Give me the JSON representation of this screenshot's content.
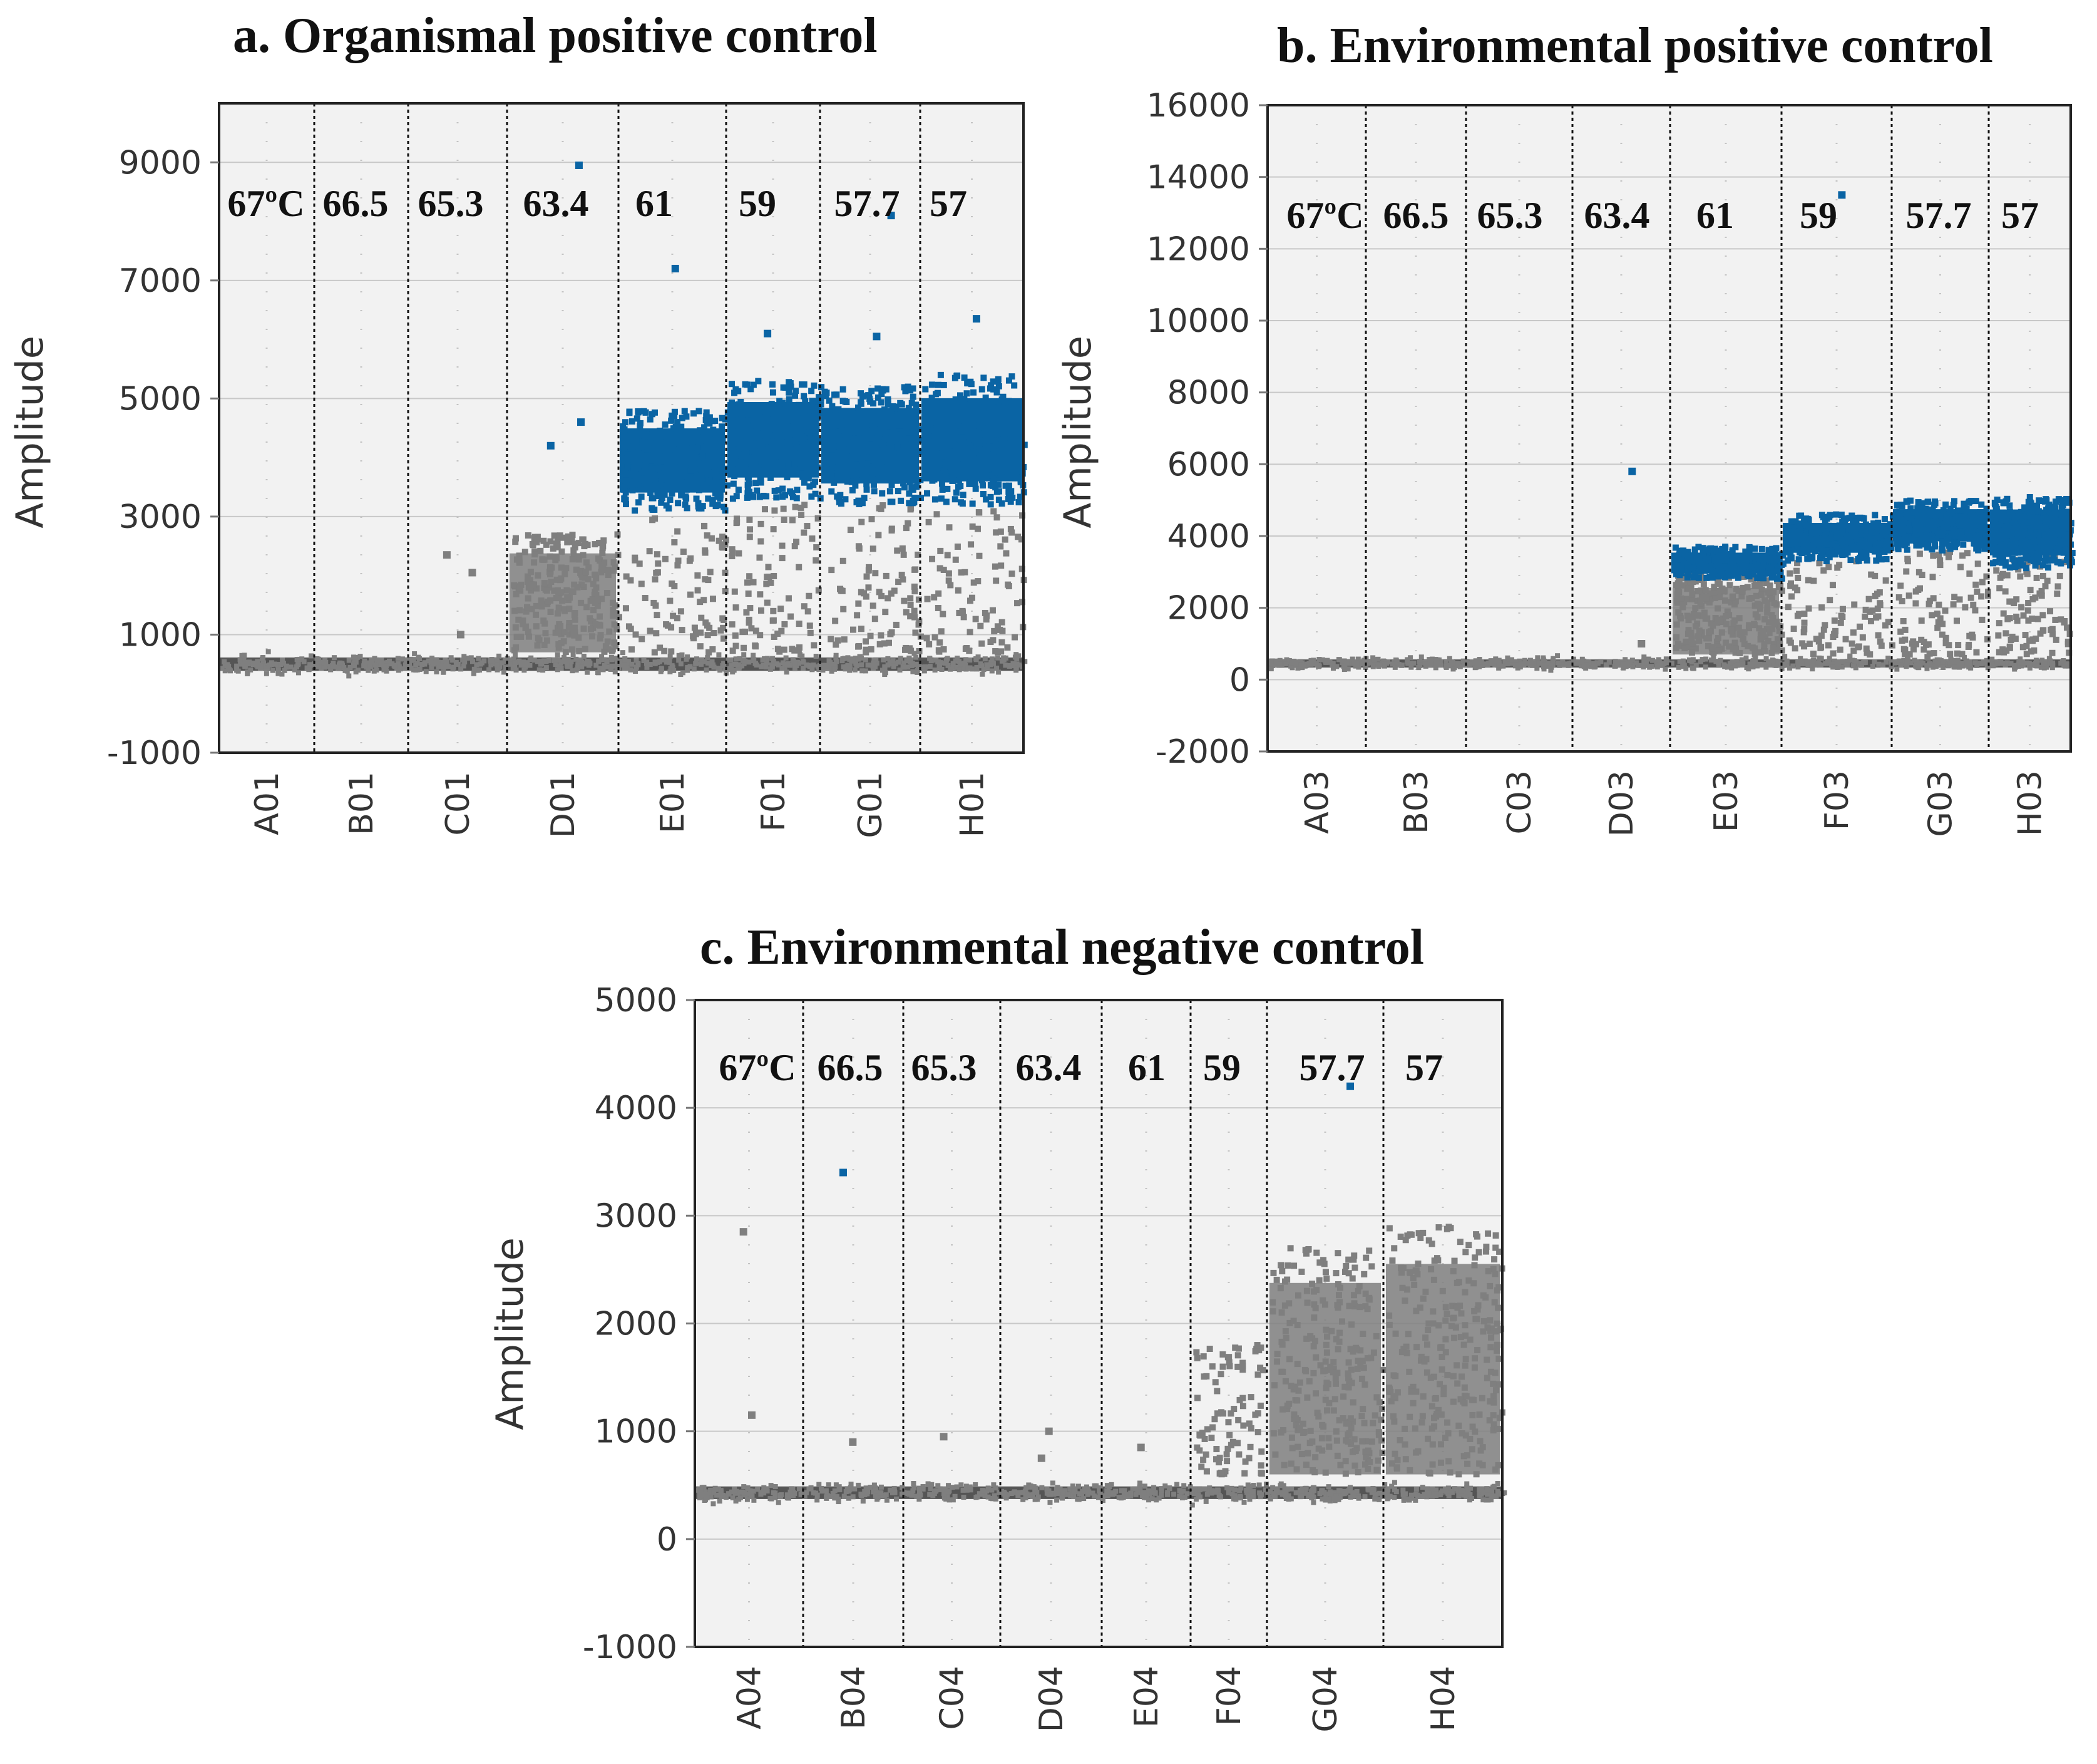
{
  "chart_data": [
    {
      "id": "a",
      "type": "scatter",
      "title": "a. Organismal positive control",
      "ylabel": "Amplitude",
      "ylim": [
        -1000,
        10000
      ],
      "yticks": [
        -1000,
        1000,
        3000,
        5000,
        7000,
        9000
      ],
      "wells": [
        "A01",
        "B01",
        "C01",
        "D01",
        "E01",
        "F01",
        "G01",
        "H01"
      ],
      "temps": [
        "67ºC",
        "66.5",
        "65.3",
        "63.4",
        "61",
        "59",
        "57.7",
        "57"
      ],
      "colors": {
        "negative": "#7f7f7f",
        "baseline": "#555555",
        "positive": "#0a64a4"
      },
      "negative_band": {
        "center": 500,
        "spread": 250
      },
      "positive_clusters": [
        {
          "well": "E01",
          "min": 3100,
          "max": 4800
        },
        {
          "well": "F01",
          "min": 3300,
          "max": 5300
        },
        {
          "well": "G01",
          "min": 3200,
          "max": 5200
        },
        {
          "well": "H01",
          "min": 3200,
          "max": 5400
        }
      ],
      "rain_clusters": [
        {
          "well": "D01",
          "min": 700,
          "max": 2700,
          "density": "dense"
        },
        {
          "well": "E01",
          "min": 700,
          "max": 3000,
          "density": "sparse"
        },
        {
          "well": "F01",
          "min": 700,
          "max": 3200,
          "density": "sparse"
        },
        {
          "well": "G01",
          "min": 700,
          "max": 3200,
          "density": "sparse"
        },
        {
          "well": "H01",
          "min": 700,
          "max": 3100,
          "density": "sparse"
        }
      ],
      "outliers": [
        {
          "well": "D01",
          "y": 8950,
          "group": "positive"
        },
        {
          "well": "D01",
          "y": 4600,
          "group": "positive"
        },
        {
          "well": "D01",
          "y": 4200,
          "group": "positive"
        },
        {
          "well": "E01",
          "y": 7200,
          "group": "positive"
        },
        {
          "well": "F01",
          "y": 6100,
          "group": "positive"
        },
        {
          "well": "G01",
          "y": 8100,
          "group": "positive"
        },
        {
          "well": "G01",
          "y": 6050,
          "group": "positive"
        },
        {
          "well": "H01",
          "y": 6350,
          "group": "positive"
        },
        {
          "well": "C01",
          "y": 2350,
          "group": "negative"
        },
        {
          "well": "C01",
          "y": 2050,
          "group": "negative"
        },
        {
          "well": "C01",
          "y": 1000,
          "group": "negative"
        }
      ]
    },
    {
      "id": "b",
      "type": "scatter",
      "title": "b. Environmental positive control",
      "ylabel": "Amplitude",
      "ylim": [
        -2000,
        16000
      ],
      "yticks": [
        -2000,
        0,
        2000,
        4000,
        6000,
        8000,
        10000,
        12000,
        14000,
        16000
      ],
      "wells": [
        "A03",
        "B03",
        "C03",
        "D03",
        "E03",
        "F03",
        "G03",
        "H03"
      ],
      "temps": [
        "67ºC",
        "66.5",
        "65.3",
        "63.4",
        "61",
        "59",
        "57.7",
        "57"
      ],
      "colors": {
        "negative": "#7f7f7f",
        "baseline": "#555555",
        "positive": "#0a64a4"
      },
      "negative_band": {
        "center": 450,
        "spread": 250
      },
      "positive_clusters": [
        {
          "well": "E03",
          "min": 2800,
          "max": 3700
        },
        {
          "well": "F03",
          "min": 3300,
          "max": 4600
        },
        {
          "well": "G03",
          "min": 3600,
          "max": 5000
        },
        {
          "well": "H03",
          "min": 3100,
          "max": 5100
        }
      ],
      "rain_clusters": [
        {
          "well": "E03",
          "min": 700,
          "max": 2900,
          "density": "dense"
        },
        {
          "well": "F03",
          "min": 700,
          "max": 3300,
          "density": "sparse"
        },
        {
          "well": "G03",
          "min": 700,
          "max": 3600,
          "density": "sparse"
        },
        {
          "well": "H03",
          "min": 700,
          "max": 3500,
          "density": "sparse"
        }
      ],
      "outliers": [
        {
          "well": "D03",
          "y": 5800,
          "group": "positive"
        },
        {
          "well": "F03",
          "y": 13500,
          "group": "positive"
        },
        {
          "well": "D03",
          "y": 1000,
          "group": "negative"
        }
      ]
    },
    {
      "id": "c",
      "type": "scatter",
      "title": "c. Environmental negative control",
      "ylabel": "Amplitude",
      "ylim": [
        -1000,
        5000
      ],
      "yticks": [
        -1000,
        0,
        1000,
        2000,
        3000,
        4000,
        5000
      ],
      "wells": [
        "A04",
        "B04",
        "C04",
        "D04",
        "E04",
        "F04",
        "G04",
        "H04"
      ],
      "temps": [
        "67ºC",
        "66.5",
        "65.3",
        "63.4",
        "61",
        "59",
        "57.7",
        "57"
      ],
      "colors": {
        "negative": "#7f7f7f",
        "baseline": "#555555",
        "positive": "#0a64a4"
      },
      "negative_band": {
        "center": 430,
        "spread": 130
      },
      "positive_clusters": [],
      "rain_clusters": [
        {
          "well": "F04",
          "min": 600,
          "max": 1800,
          "density": "sparse"
        },
        {
          "well": "G04",
          "min": 600,
          "max": 2700,
          "density": "dense"
        },
        {
          "well": "H04",
          "min": 600,
          "max": 2900,
          "density": "dense"
        }
      ],
      "outliers": [
        {
          "well": "B04",
          "y": 3400,
          "group": "positive"
        },
        {
          "well": "G04",
          "y": 4200,
          "group": "positive"
        },
        {
          "well": "A04",
          "y": 2850,
          "group": "negative"
        },
        {
          "well": "A04",
          "y": 1150,
          "group": "negative"
        },
        {
          "well": "B04",
          "y": 900,
          "group": "negative"
        },
        {
          "well": "C04",
          "y": 950,
          "group": "negative"
        },
        {
          "well": "D04",
          "y": 1000,
          "group": "negative"
        },
        {
          "well": "D04",
          "y": 750,
          "group": "negative"
        },
        {
          "well": "E04",
          "y": 850,
          "group": "negative"
        }
      ]
    }
  ]
}
